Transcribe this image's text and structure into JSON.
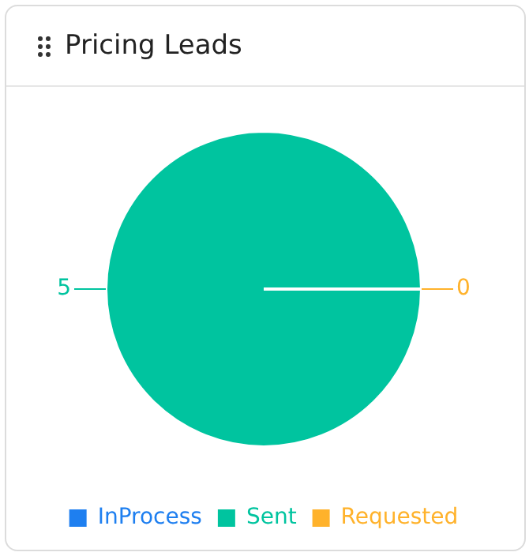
{
  "chart_data": {
    "type": "pie",
    "title": "Pricing Leads",
    "categories": [
      "InProcess",
      "Sent",
      "Requested"
    ],
    "values": [
      0,
      5,
      0
    ],
    "colors": [
      "#1e7ff0",
      "#00c49f",
      "#ffb22b"
    ],
    "value_labels": [
      null,
      "5",
      "0"
    ],
    "legend": "bottom"
  }
}
